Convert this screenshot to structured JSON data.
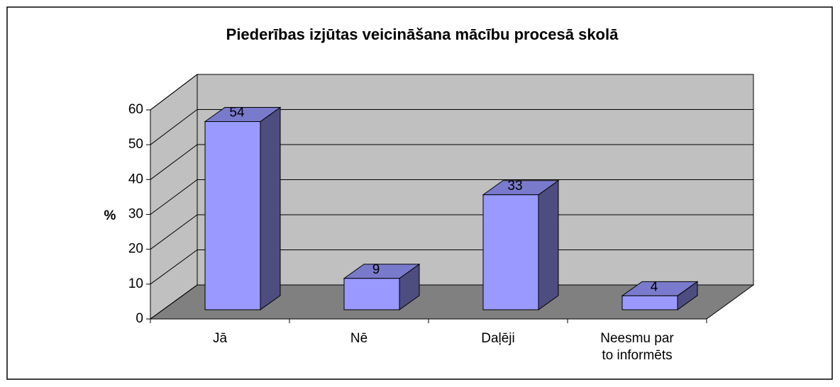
{
  "chart_data": {
    "type": "bar",
    "title": "Piederības izjūtas veicināšana mācību procesā skolā",
    "ylabel": "%",
    "categories": [
      "Jā",
      "Nē",
      "Daļēji",
      "Neesmu par to informēts"
    ],
    "values": [
      54,
      9,
      33,
      4
    ],
    "color": "#9999ff",
    "ylim": [
      0,
      60
    ],
    "yticks": [
      0,
      10,
      20,
      30,
      40,
      50,
      60
    ],
    "grid": true
  }
}
